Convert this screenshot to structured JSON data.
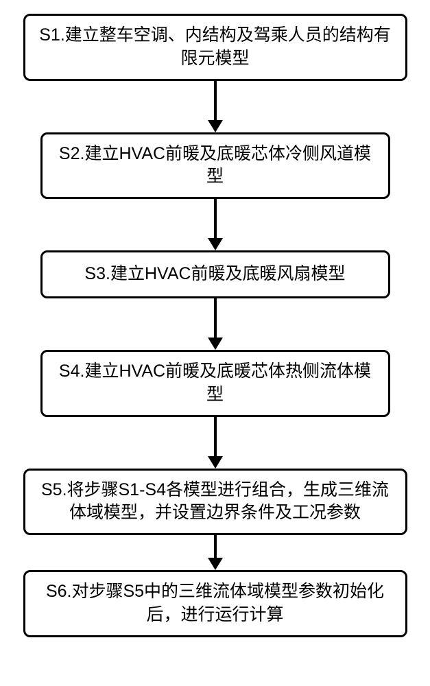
{
  "flowchart": {
    "type": "flowchart",
    "background_color": "#ffffff",
    "box_border_color": "#000000",
    "box_border_width": 3,
    "box_border_radius": 10,
    "box_fill_color": "#ffffff",
    "text_color": "#000000",
    "font_size": 25,
    "arrow_color": "#000000",
    "arrow_line_width": 4,
    "arrow_head_width": 22,
    "arrow_head_height": 18,
    "nodes": [
      {
        "id": "s1",
        "text": "S1.建立整车空调、内结构及驾乘人员的结构有限元模型",
        "lines": 2,
        "arrow_gap": 58
      },
      {
        "id": "s2",
        "text": "S2.建立HVAC前暖及底暖芯体冷侧风道模型",
        "lines": 1,
        "arrow_gap": 58
      },
      {
        "id": "s3",
        "text": "S3.建立HVAC前暖及底暖风扇模型",
        "lines": 1,
        "arrow_gap": 58
      },
      {
        "id": "s4",
        "text": "S4.建立HVAC前暖及底暖芯体热侧流体模型",
        "lines": 1,
        "arrow_gap": 58
      },
      {
        "id": "s5",
        "text": "S5.将步骤S1-S4各模型进行组合，生成三维流体域模型，并设置边界条件及工况参数",
        "lines": 2,
        "arrow_gap": 34
      },
      {
        "id": "s6",
        "text": "S6.对步骤S5中的三维流体域模型参数初始化后，进行运行计算",
        "lines": 2,
        "arrow_gap": 0
      }
    ]
  }
}
